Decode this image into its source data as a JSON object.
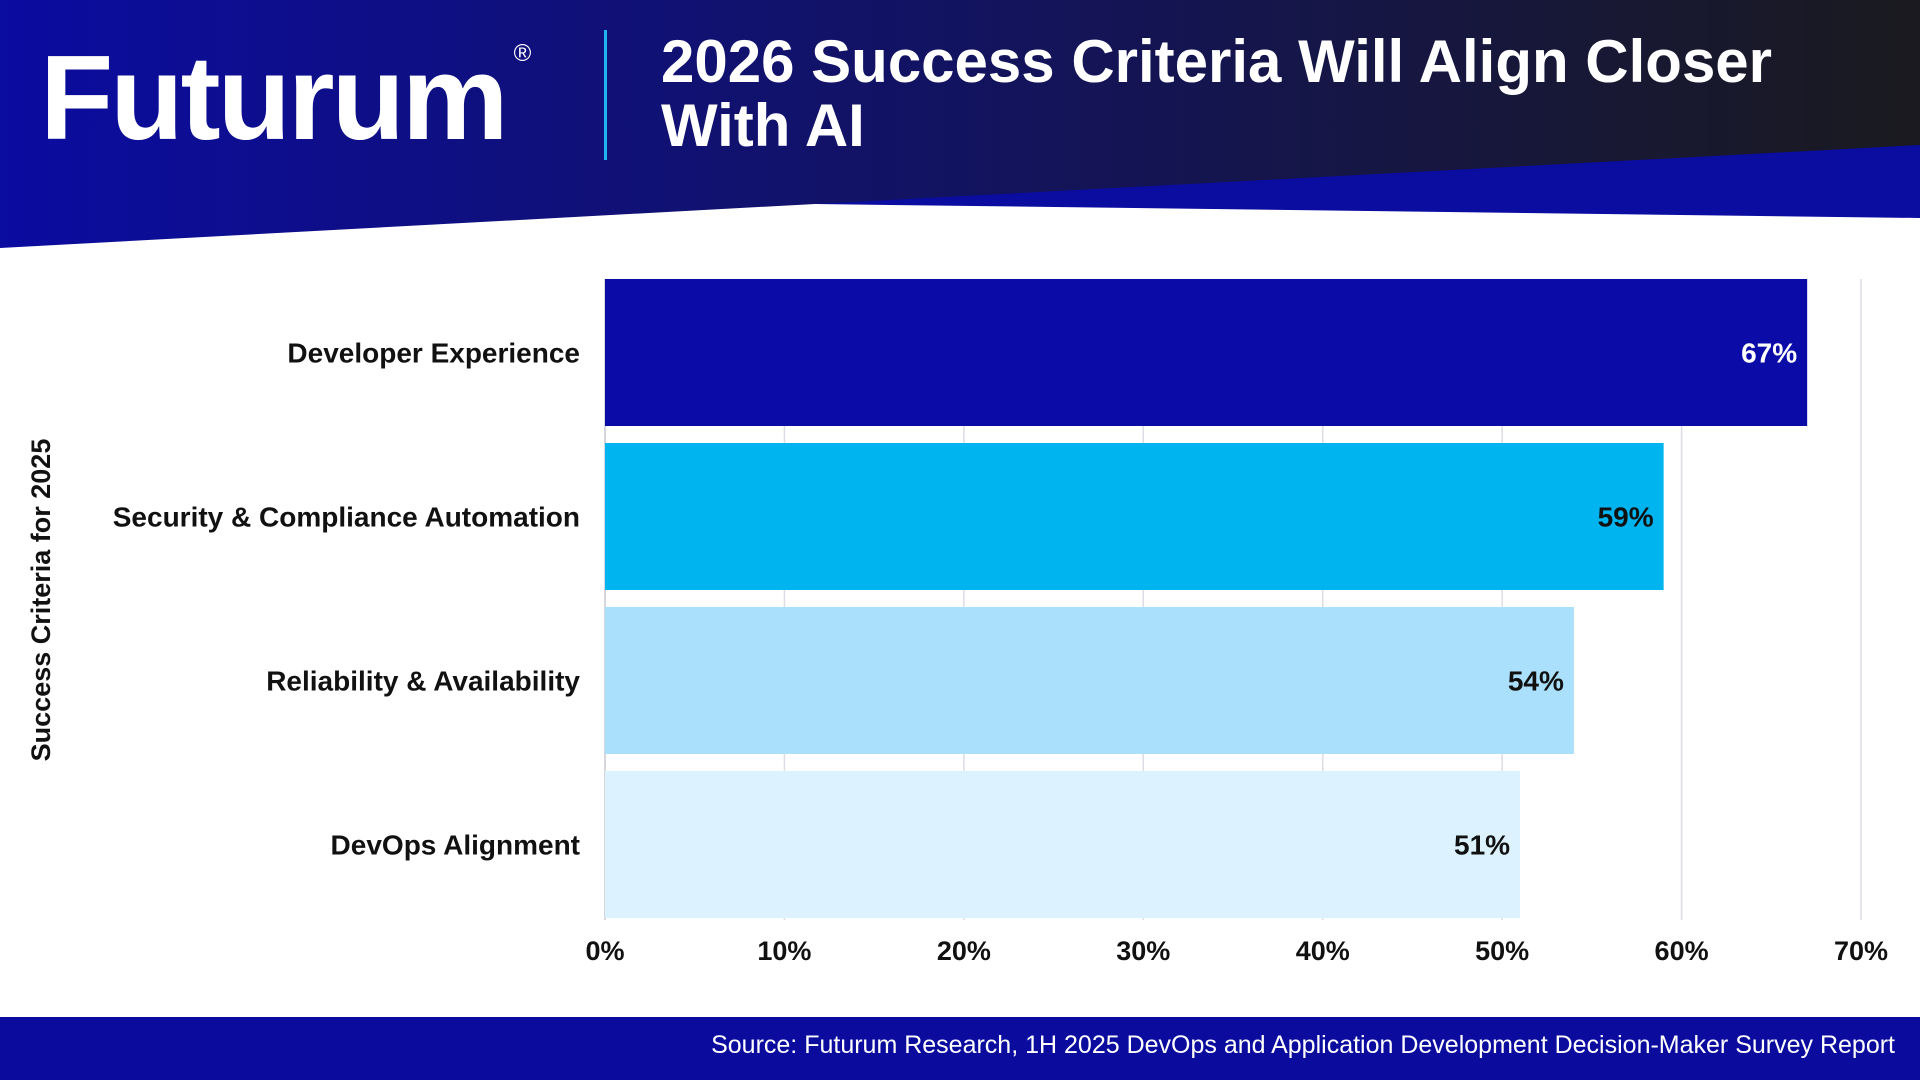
{
  "header": {
    "logo_text": "Futurum",
    "logo_mark": "®",
    "title": "2026 Success Criteria Will Align Closer With AI"
  },
  "colors": {
    "header_left": "#0b0ca0",
    "header_right": "#1a1a1f",
    "accent_blue": "#0b0ca8",
    "divider": "#1eb4f0",
    "footer": "#0b0c9e"
  },
  "chart_data": {
    "type": "bar",
    "orientation": "horizontal",
    "categories": [
      "Developer Experience",
      "Security & Compliance Automation",
      "Reliability & Availability",
      "DevOps Alignment"
    ],
    "values": [
      67,
      59,
      54,
      51
    ],
    "value_labels": [
      "67%",
      "59%",
      "54%",
      "51%"
    ],
    "bar_colors": [
      "#0b0ca8",
      "#00b4f0",
      "#aae0fc",
      "#dcf2fe"
    ],
    "label_colors": [
      "#ffffff",
      "#111111",
      "#111111",
      "#111111"
    ],
    "xlim": [
      0,
      70
    ],
    "xticks": [
      0,
      10,
      20,
      30,
      40,
      50,
      60,
      70
    ],
    "xtick_labels": [
      "0%",
      "10%",
      "20%",
      "30%",
      "40%",
      "50%",
      "60%",
      "70%"
    ],
    "ylabel": "Success Criteria for 2025",
    "xlabel": "",
    "grid": "vertical",
    "legend": "none"
  },
  "footer": {
    "source": "Source: Futurum Research, 1H 2025 DevOps and Application Development Decision-Maker Survey Report"
  }
}
